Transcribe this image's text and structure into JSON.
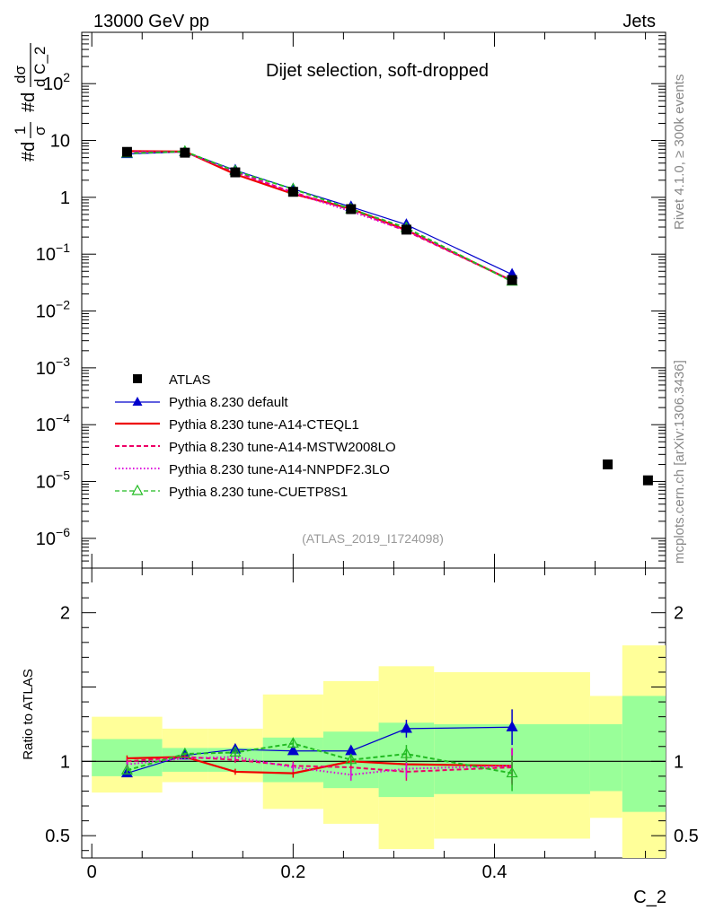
{
  "header": {
    "left": "13000 GeV pp",
    "right": "Jets"
  },
  "side": {
    "rivet": "Rivet 4.1.0, ≥ 300k events",
    "mcplots": "mcplots.cern.ch [arXiv:1306.3436]"
  },
  "chart_data": {
    "type": "line",
    "title": "Dijet selection, soft-dropped",
    "watermark": "(ATLAS_2019_I1724098)",
    "ylabel": "#d1/σ #dσ/d C_2",
    "ylabel_parts": {
      "one": "1",
      "sigma": "σ",
      "d1": "#d",
      "d2": "#d",
      "dsig": "dσ",
      "dc2": "d C_2"
    },
    "xlabel": "C_2",
    "yscale": "log",
    "ylim": [
      3e-07,
      800
    ],
    "xlim": [
      -0.01,
      0.57
    ],
    "y_ticks": [
      {
        "v": 100,
        "m": "10",
        "e": "2"
      },
      {
        "v": 10,
        "m": "10",
        "e": ""
      },
      {
        "v": 1,
        "m": "1",
        "e": ""
      },
      {
        "v": 0.1,
        "m": "10",
        "e": "−1"
      },
      {
        "v": 0.01,
        "m": "10",
        "e": "−2"
      },
      {
        "v": 0.001,
        "m": "10",
        "e": "−3"
      },
      {
        "v": 0.0001,
        "m": "10",
        "e": "−4"
      },
      {
        "v": 1e-05,
        "m": "10",
        "e": "−5"
      },
      {
        "v": 1e-06,
        "m": "10",
        "e": "−6"
      }
    ],
    "x_ticks": [
      {
        "v": 0,
        "label": "0"
      },
      {
        "v": 0.2,
        "label": "0.2"
      },
      {
        "v": 0.4,
        "label": "0.4"
      }
    ],
    "data": {
      "name": "ATLAS",
      "x": [
        0.035,
        0.0925,
        0.1425,
        0.2,
        0.2575,
        0.3125,
        0.4175,
        0.5125,
        0.5525
      ],
      "y": [
        6.3,
        6.1,
        2.75,
        1.25,
        0.62,
        0.27,
        0.035,
        2e-05,
        1.05e-05
      ]
    },
    "series": [
      {
        "name": "Pythia 8.230 default",
        "color": "#0000cc",
        "style": "solid",
        "marker": "tri-filled",
        "x": [
          0.035,
          0.0925,
          0.1425,
          0.2,
          0.2575,
          0.3125,
          0.4175
        ],
        "y": [
          5.8,
          6.3,
          3.0,
          1.4,
          0.68,
          0.33,
          0.044
        ]
      },
      {
        "name": "Pythia 8.230 tune-A14-CTEQL1",
        "color": "#ee0000",
        "style": "solid",
        "marker": "none",
        "x": [
          0.035,
          0.0925,
          0.1425,
          0.2,
          0.2575,
          0.3125,
          0.4175
        ],
        "y": [
          6.5,
          6.4,
          2.55,
          1.15,
          0.63,
          0.265,
          0.034
        ]
      },
      {
        "name": "Pythia 8.230 tune-A14-MSTW2008LO",
        "color": "#ee0066",
        "style": "dashed",
        "marker": "none",
        "x": [
          0.035,
          0.0925,
          0.1425,
          0.2,
          0.2575,
          0.3125,
          0.4175
        ],
        "y": [
          6.4,
          6.3,
          2.8,
          1.22,
          0.6,
          0.255,
          0.034
        ]
      },
      {
        "name": "Pythia 8.230 tune-A14-NNPDF2.3LO",
        "color": "#dd00dd",
        "style": "dotted",
        "marker": "none",
        "x": [
          0.035,
          0.0925,
          0.1425,
          0.2,
          0.2575,
          0.3125,
          0.4175
        ],
        "y": [
          6.2,
          6.25,
          2.85,
          1.2,
          0.565,
          0.26,
          0.0345
        ]
      },
      {
        "name": "Pythia 8.230 tune-CUETP8S1",
        "color": "#22bb22",
        "style": "dashed",
        "marker": "tri-open",
        "x": [
          0.035,
          0.0925,
          0.1425,
          0.2,
          0.2575,
          0.3125,
          0.4175
        ],
        "y": [
          5.95,
          6.4,
          2.9,
          1.4,
          0.62,
          0.29,
          0.033
        ]
      }
    ],
    "ratio": {
      "ylabel": "Ratio to ATLAS",
      "ylim": [
        0.35,
        2.3
      ],
      "y_ticks": [
        {
          "v": 2,
          "label": "2"
        },
        {
          "v": 1,
          "label": "1"
        },
        {
          "v": 0.5,
          "label": "0.5"
        }
      ],
      "bins": [
        {
          "lo": 0.0,
          "hi": 0.07,
          "in_lo": 0.9,
          "in_hi": 1.15,
          "out_lo": 0.79,
          "out_hi": 1.3
        },
        {
          "lo": 0.07,
          "hi": 0.115,
          "in_lo": 0.93,
          "in_hi": 1.09,
          "out_lo": 0.86,
          "out_hi": 1.22
        },
        {
          "lo": 0.115,
          "hi": 0.17,
          "in_lo": 0.93,
          "in_hi": 1.09,
          "out_lo": 0.86,
          "out_hi": 1.22
        },
        {
          "lo": 0.17,
          "hi": 0.23,
          "in_lo": 0.86,
          "in_hi": 1.16,
          "out_lo": 0.68,
          "out_hi": 1.45
        },
        {
          "lo": 0.23,
          "hi": 0.285,
          "in_lo": 0.82,
          "in_hi": 1.2,
          "out_lo": 0.58,
          "out_hi": 1.54
        },
        {
          "lo": 0.285,
          "hi": 0.34,
          "in_lo": 0.76,
          "in_hi": 1.26,
          "out_lo": 0.41,
          "out_hi": 1.64
        },
        {
          "lo": 0.34,
          "hi": 0.495,
          "in_lo": 0.78,
          "in_hi": 1.25,
          "out_lo": 0.48,
          "out_hi": 1.6
        },
        {
          "lo": 0.495,
          "hi": 0.527,
          "in_lo": 0.8,
          "in_hi": 1.25,
          "out_lo": 0.62,
          "out_hi": 1.44
        },
        {
          "lo": 0.527,
          "hi": 0.57,
          "in_lo": 0.66,
          "in_hi": 1.44,
          "out_lo": 0.35,
          "out_hi": 1.78
        }
      ],
      "series": [
        {
          "name": "Pythia 8.230 default",
          "color": "#0000cc",
          "style": "solid",
          "marker": "tri-filled",
          "y": [
            0.92,
            1.04,
            1.08,
            1.07,
            1.07,
            1.22,
            1.23
          ],
          "err": [
            0.01,
            0.01,
            0.02,
            0.02,
            0.03,
            0.06,
            0.12
          ]
        },
        {
          "name": "Pythia 8.230 tune-A14-CTEQL1",
          "color": "#ee0000",
          "style": "solid",
          "marker": "none",
          "y": [
            1.02,
            1.03,
            0.93,
            0.92,
            1.0,
            0.98,
            0.97
          ],
          "err": [
            0.02,
            0.01,
            0.02,
            0.03,
            0.04,
            0.06,
            0.12
          ]
        },
        {
          "name": "Pythia 8.230 tune-A14-MSTW2008LO",
          "color": "#ee0066",
          "style": "dashed",
          "marker": "none",
          "y": [
            1.0,
            1.03,
            1.01,
            0.97,
            0.96,
            0.93,
            0.96
          ],
          "err": [
            0.02,
            0.01,
            0.02,
            0.03,
            0.04,
            0.06,
            0.12
          ]
        },
        {
          "name": "Pythia 8.230 tune-A14-NNPDF2.3LO",
          "color": "#dd00dd",
          "style": "dotted",
          "marker": "none",
          "y": [
            0.98,
            1.02,
            1.03,
            0.96,
            0.91,
            0.95,
            0.97
          ],
          "err": [
            0.02,
            0.01,
            0.02,
            0.03,
            0.04,
            0.06,
            0.12
          ]
        },
        {
          "name": "Pythia 8.230 tune-CUETP8S1",
          "color": "#22bb22",
          "style": "dashed",
          "marker": "tri-open",
          "y": [
            0.94,
            1.05,
            1.06,
            1.12,
            1.01,
            1.05,
            0.92
          ],
          "err": [
            0.02,
            0.01,
            0.02,
            0.03,
            0.04,
            0.06,
            0.12
          ]
        }
      ]
    }
  }
}
